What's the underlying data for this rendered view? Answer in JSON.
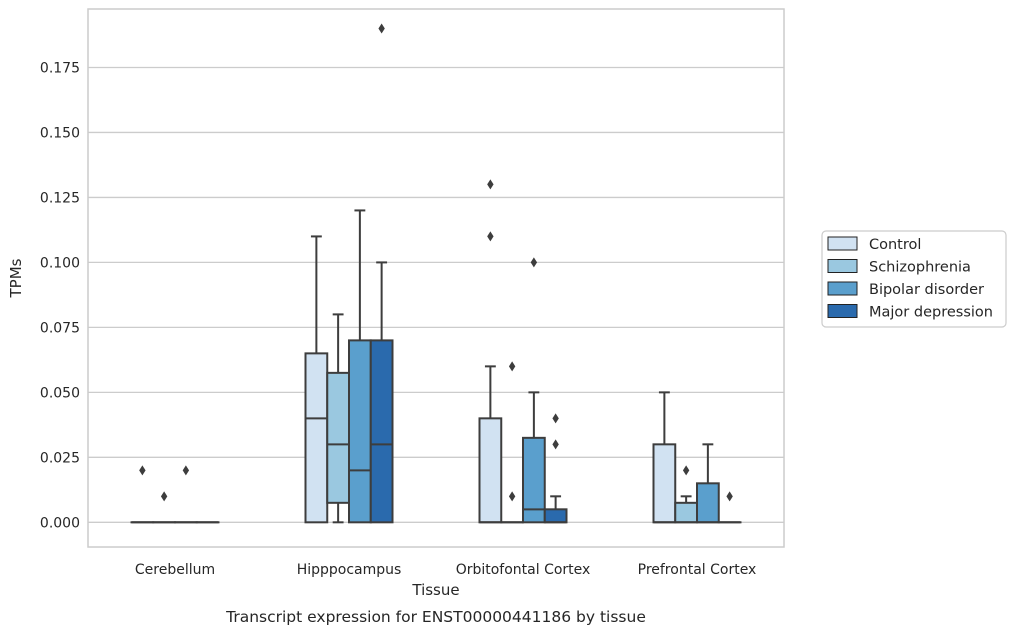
{
  "chart_data": {
    "type": "box",
    "title": "",
    "caption": "Transcript expression for ENST00000441186 by tissue",
    "xlabel": "Tissue",
    "ylabel": "TPMs",
    "ylim": [
      -0.0095,
      0.1975
    ],
    "yticks": [
      "0.000",
      "0.025",
      "0.050",
      "0.075",
      "0.100",
      "0.125",
      "0.150",
      "0.175"
    ],
    "grid": true,
    "legend_position": "right",
    "categories": [
      "Cerebellum",
      "Hipppocampus",
      "Orbitofontal Cortex",
      "Prefrontal Cortex"
    ],
    "series": [
      {
        "name": "Control",
        "color": "#d1e2f2",
        "boxes": [
          {
            "q1": 0,
            "median": 0,
            "q3": 0,
            "whisker_low": 0,
            "whisker_high": 0,
            "outliers": [
              0.02
            ]
          },
          {
            "q1": 0,
            "median": 0.04,
            "q3": 0.065,
            "whisker_low": 0,
            "whisker_high": 0.11,
            "outliers": []
          },
          {
            "q1": 0,
            "median": 0,
            "q3": 0.04,
            "whisker_low": 0,
            "whisker_high": 0.06,
            "outliers": [
              0.11,
              0.13
            ]
          },
          {
            "q1": 0,
            "median": 0,
            "q3": 0.03,
            "whisker_low": 0,
            "whisker_high": 0.05,
            "outliers": []
          }
        ]
      },
      {
        "name": "Schizophrenia",
        "color": "#9ac8e0",
        "boxes": [
          {
            "q1": 0,
            "median": 0,
            "q3": 0,
            "whisker_low": 0,
            "whisker_high": 0,
            "outliers": [
              0.01
            ]
          },
          {
            "q1": 0.0075,
            "median": 0.03,
            "q3": 0.0575,
            "whisker_low": 0,
            "whisker_high": 0.08,
            "outliers": []
          },
          {
            "q1": 0,
            "median": 0,
            "q3": 0,
            "whisker_low": 0,
            "whisker_high": 0,
            "outliers": [
              0.01,
              0.06
            ]
          },
          {
            "q1": 0,
            "median": 0,
            "q3": 0.0075,
            "whisker_low": 0,
            "whisker_high": 0.01,
            "outliers": [
              0.02
            ]
          }
        ]
      },
      {
        "name": "Bipolar disorder",
        "color": "#5a9fcd",
        "boxes": [
          {
            "q1": 0,
            "median": 0,
            "q3": 0,
            "whisker_low": 0,
            "whisker_high": 0,
            "outliers": [
              0.02
            ]
          },
          {
            "q1": 0,
            "median": 0.02,
            "q3": 0.07,
            "whisker_low": 0,
            "whisker_high": 0.12,
            "outliers": []
          },
          {
            "q1": 0,
            "median": 0.005,
            "q3": 0.0325,
            "whisker_low": 0,
            "whisker_high": 0.05,
            "outliers": [
              0.1
            ]
          },
          {
            "q1": 0,
            "median": 0,
            "q3": 0.015,
            "whisker_low": 0,
            "whisker_high": 0.03,
            "outliers": []
          }
        ]
      },
      {
        "name": "Major depression",
        "color": "#2a6aad",
        "boxes": [
          {
            "q1": 0,
            "median": 0,
            "q3": 0,
            "whisker_low": 0,
            "whisker_high": 0,
            "outliers": []
          },
          {
            "q1": 0,
            "median": 0.03,
            "q3": 0.07,
            "whisker_low": 0,
            "whisker_high": 0.1,
            "outliers": [
              0.19
            ]
          },
          {
            "q1": 0,
            "median": 0,
            "q3": 0.005,
            "whisker_low": 0,
            "whisker_high": 0.01,
            "outliers": [
              0.03,
              0.04
            ]
          },
          {
            "q1": 0,
            "median": 0,
            "q3": 0,
            "whisker_low": 0,
            "whisker_high": 0,
            "outliers": [
              0.01
            ]
          }
        ]
      }
    ]
  }
}
